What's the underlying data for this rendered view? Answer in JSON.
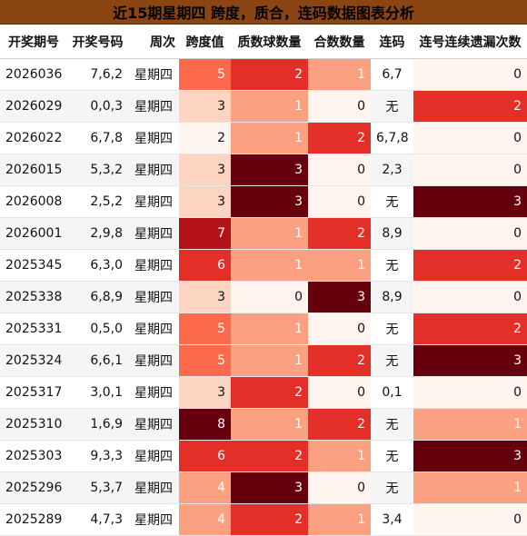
{
  "title": "近15期星期四 跨度，质合，连码数据图表分析",
  "headers": [
    "开奖期号",
    "开奖号码",
    "周次",
    "跨度值",
    "质数球数量",
    "合数数量",
    "连码",
    "连号连续遗漏次数"
  ],
  "chart_data": {
    "type": "table",
    "title": "近15期星期四 跨度，质合，连码数据图表分析",
    "columns": [
      "开奖期号",
      "开奖号码",
      "周次",
      "跨度值",
      "质数球数量",
      "合数数量",
      "连码",
      "连号连续遗漏次数"
    ],
    "rows": [
      [
        "2026036",
        "7,6,2",
        "星期四",
        5,
        2,
        1,
        "6,7",
        0
      ],
      [
        "2026029",
        "0,0,3",
        "星期四",
        3,
        1,
        0,
        "无",
        2
      ],
      [
        "2026022",
        "6,7,8",
        "星期四",
        2,
        1,
        2,
        "6,7,8",
        0
      ],
      [
        "2026015",
        "5,3,2",
        "星期四",
        3,
        3,
        0,
        "2,3",
        0
      ],
      [
        "2026008",
        "2,5,2",
        "星期四",
        3,
        3,
        0,
        "无",
        3
      ],
      [
        "2026001",
        "2,9,8",
        "星期四",
        7,
        1,
        2,
        "8,9",
        0
      ],
      [
        "2025345",
        "6,3,0",
        "星期四",
        6,
        1,
        1,
        "无",
        2
      ],
      [
        "2025338",
        "6,8,9",
        "星期四",
        3,
        0,
        3,
        "8,9",
        0
      ],
      [
        "2025331",
        "0,5,0",
        "星期四",
        5,
        1,
        0,
        "无",
        2
      ],
      [
        "2025324",
        "6,6,1",
        "星期四",
        5,
        1,
        2,
        "无",
        3
      ],
      [
        "2025317",
        "3,0,1",
        "星期四",
        3,
        2,
        0,
        "0,1",
        0
      ],
      [
        "2025310",
        "1,6,9",
        "星期四",
        8,
        1,
        2,
        "无",
        1
      ],
      [
        "2025303",
        "9,3,3",
        "星期四",
        6,
        2,
        1,
        "无",
        3
      ],
      [
        "2025296",
        "5,3,7",
        "星期四",
        4,
        3,
        0,
        "无",
        1
      ],
      [
        "2025289",
        "4,7,3",
        "星期四",
        4,
        2,
        1,
        "3,4",
        0
      ]
    ],
    "heatmap_columns": [
      "跨度值",
      "质数球数量",
      "合数数量",
      "连号连续遗漏次数"
    ],
    "colormap": "Reds"
  }
}
